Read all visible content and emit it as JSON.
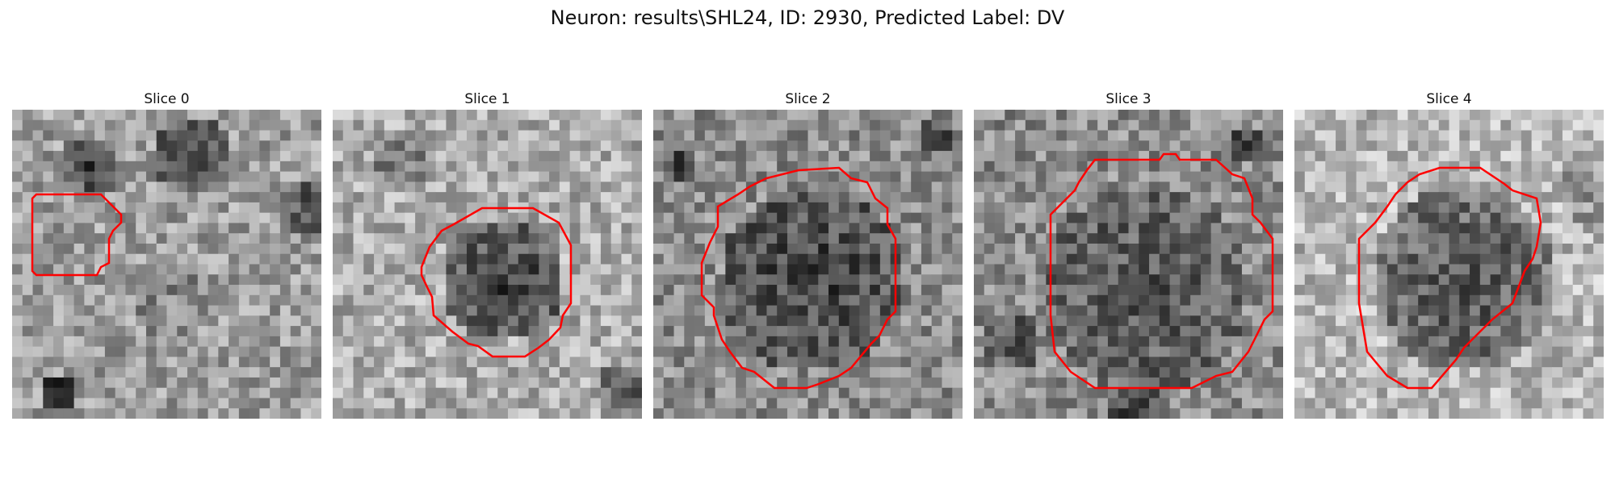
{
  "figure": {
    "title": "Neuron: results\\SHL24, ID: 2930, Predicted Label: DV",
    "outline_color": "#ff0000",
    "image_colormap": "grayscale",
    "slices": [
      {
        "label": "Slice 0"
      },
      {
        "label": "Slice 1"
      },
      {
        "label": "Slice 2"
      },
      {
        "label": "Slice 3"
      },
      {
        "label": "Slice 4"
      }
    ]
  }
}
